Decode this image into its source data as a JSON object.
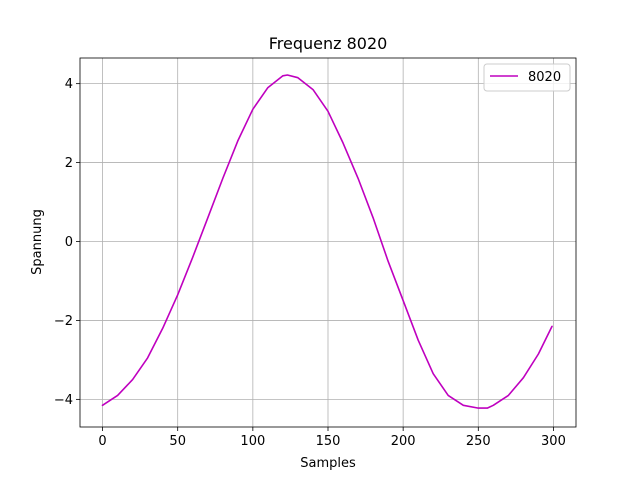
{
  "chart_data": {
    "type": "line",
    "title": "Frequenz 8020",
    "xlabel": "Samples",
    "ylabel": "Spannung",
    "xlim": [
      -15,
      315
    ],
    "ylim": [
      -4.7,
      4.65
    ],
    "xticks": [
      0,
      50,
      100,
      150,
      200,
      250,
      300
    ],
    "xtick_labels": [
      "0",
      "50",
      "100",
      "150",
      "200",
      "250",
      "300"
    ],
    "yticks": [
      -4,
      -2,
      0,
      2,
      4
    ],
    "ytick_labels": [
      "−4",
      "−2",
      "0",
      "2",
      "4"
    ],
    "grid": true,
    "legend_position": "upper-right",
    "series": [
      {
        "name": "8020",
        "color": "#bf00bf",
        "x": [
          0,
          10,
          20,
          30,
          40,
          50,
          60,
          70,
          80,
          90,
          100,
          110,
          120,
          123,
          130,
          140,
          150,
          160,
          170,
          180,
          190,
          200,
          210,
          220,
          230,
          240,
          250,
          256,
          260,
          270,
          280,
          290,
          299
        ],
        "y": [
          -4.15,
          -3.9,
          -3.5,
          -2.95,
          -2.2,
          -1.35,
          -0.4,
          0.6,
          1.6,
          2.55,
          3.35,
          3.9,
          4.2,
          4.22,
          4.15,
          3.85,
          3.3,
          2.5,
          1.6,
          0.6,
          -0.5,
          -1.5,
          -2.5,
          -3.35,
          -3.9,
          -4.15,
          -4.22,
          -4.22,
          -4.15,
          -3.9,
          -3.45,
          -2.85,
          -2.15
        ]
      }
    ]
  }
}
